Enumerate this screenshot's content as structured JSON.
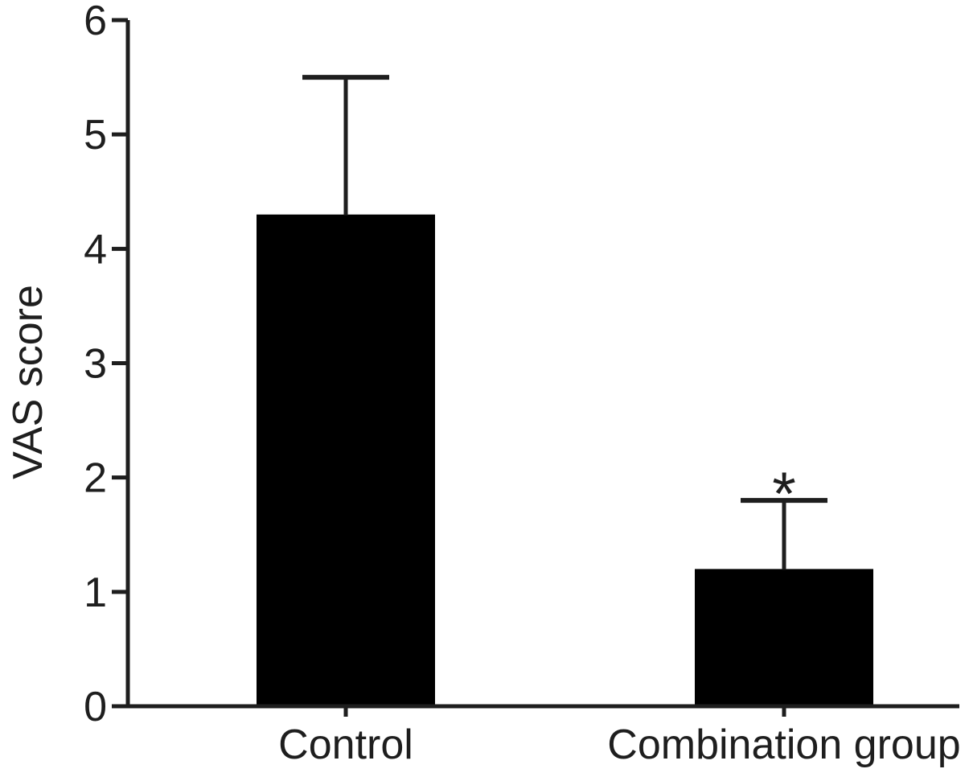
{
  "chart_data": {
    "type": "bar",
    "title": "",
    "ylabel": "VAS score",
    "xlabel": "",
    "categories": [
      "Control",
      "Combination group"
    ],
    "values": [
      4.3,
      1.2
    ],
    "errors_upper": [
      1.2,
      0.6
    ],
    "annotations": [
      {
        "category_index": 1,
        "text": "*"
      }
    ],
    "ylim": [
      0,
      6
    ],
    "yticks": [
      0,
      1,
      2,
      3,
      4,
      5,
      6
    ],
    "grid": false,
    "legend_position": "none",
    "colors": {
      "bar_fill": "#000000",
      "axis": "#1e1e1e",
      "text": "#1e1e1e",
      "background": "#ffffff"
    }
  }
}
